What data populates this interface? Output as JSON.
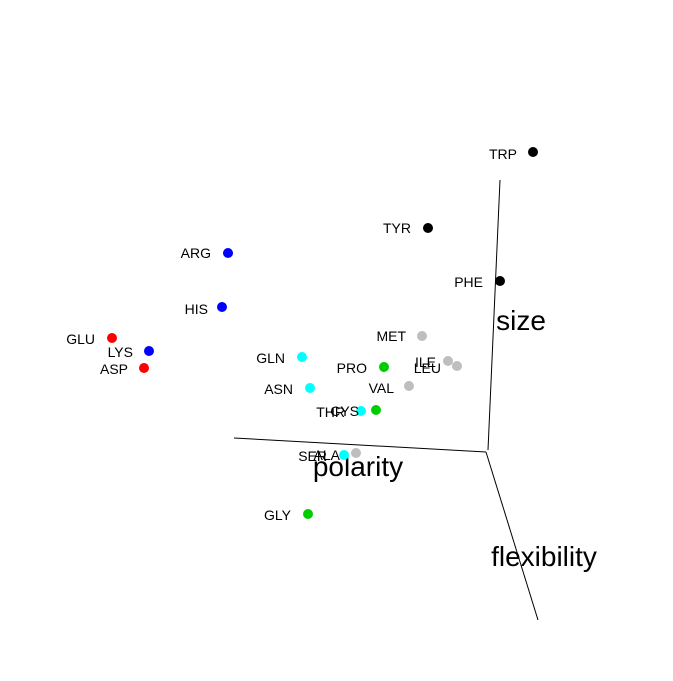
{
  "chart_data": {
    "type": "scatter",
    "title": "",
    "axes": [
      {
        "key": "size",
        "label": "size"
      },
      {
        "key": "polarity",
        "label": "polarity"
      },
      {
        "key": "flexibility",
        "label": "flexibility"
      }
    ],
    "colors": {
      "acidic": "#ff0000",
      "basic": "#0000ff",
      "aromatic": "#000000",
      "polar": "#00ffff",
      "hydrophobic": "#bebebe",
      "special": "#00cd00"
    },
    "points": [
      {
        "label": "TRP",
        "group": "aromatic"
      },
      {
        "label": "TYR",
        "group": "aromatic"
      },
      {
        "label": "PHE",
        "group": "aromatic"
      },
      {
        "label": "ARG",
        "group": "basic"
      },
      {
        "label": "HIS",
        "group": "basic"
      },
      {
        "label": "LYS",
        "group": "basic"
      },
      {
        "label": "GLU",
        "group": "acidic"
      },
      {
        "label": "ASP",
        "group": "acidic"
      },
      {
        "label": "MET",
        "group": "hydrophobic"
      },
      {
        "label": "ILE",
        "group": "hydrophobic"
      },
      {
        "label": "LEU",
        "group": "hydrophobic"
      },
      {
        "label": "VAL",
        "group": "hydrophobic"
      },
      {
        "label": "ALA",
        "group": "hydrophobic"
      },
      {
        "label": "GLN",
        "group": "polar"
      },
      {
        "label": "ASN",
        "group": "polar"
      },
      {
        "label": "THR",
        "group": "polar"
      },
      {
        "label": "SER",
        "group": "polar"
      },
      {
        "label": "PRO",
        "group": "special"
      },
      {
        "label": "CYS",
        "group": "special"
      },
      {
        "label": "GLY",
        "group": "special"
      }
    ]
  }
}
